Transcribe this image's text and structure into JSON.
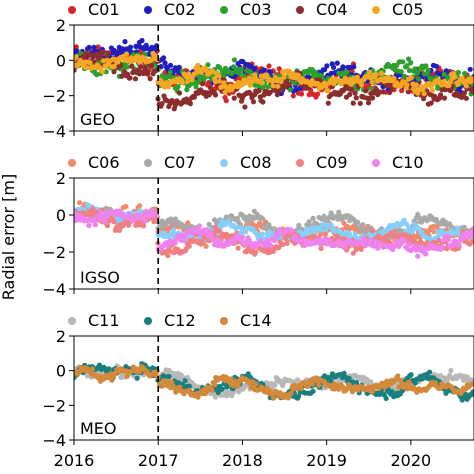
{
  "chart_data": {
    "type": "scatter",
    "ylabel": "Radial error [m]",
    "xticks": [
      "2016",
      "2017",
      "2018",
      "2019",
      "2020"
    ],
    "xlim": [
      2016.0,
      2020.75
    ],
    "epoch_line": 2017.0,
    "panels": [
      {
        "label": "GEO",
        "ylim": [
          -4,
          2
        ],
        "yticks": [
          "2",
          "0",
          "−2",
          "−4"
        ],
        "series": [
          {
            "name": "C01",
            "color": "#d62728",
            "pre_mean": 0.2,
            "post_mean": -1.1,
            "spread": 0.7
          },
          {
            "name": "C02",
            "color": "#1f1fbf",
            "pre_mean": 0.1,
            "post_mean": -1.0,
            "spread": 0.6
          },
          {
            "name": "C03",
            "color": "#2ca02c",
            "pre_mean": 0.0,
            "post_mean": -1.0,
            "spread": 0.7
          },
          {
            "name": "C04",
            "color": "#8c2d2d",
            "pre_mean": -0.2,
            "post_mean": -1.8,
            "spread": 0.6
          },
          {
            "name": "C05",
            "color": "#f5a623",
            "pre_mean": 0.0,
            "post_mean": -1.2,
            "spread": 0.4
          }
        ]
      },
      {
        "label": "IGSO",
        "ylim": [
          -4,
          2
        ],
        "yticks": [
          "2",
          "0",
          "−2",
          "−4"
        ],
        "series": [
          {
            "name": "C06",
            "color": "#f08a6a",
            "pre_mean": 0.1,
            "post_mean": -1.0,
            "spread": 0.4
          },
          {
            "name": "C07",
            "color": "#a9a9a9",
            "pre_mean": 0.0,
            "post_mean": -0.6,
            "spread": 0.3
          },
          {
            "name": "C08",
            "color": "#87cefa",
            "pre_mean": 0.1,
            "post_mean": -0.9,
            "spread": 0.3
          },
          {
            "name": "C09",
            "color": "#f08080",
            "pre_mean": 0.0,
            "post_mean": -1.5,
            "spread": 0.4
          },
          {
            "name": "C10",
            "color": "#ee82ee",
            "pre_mean": 0.0,
            "post_mean": -1.4,
            "spread": 0.3
          }
        ]
      },
      {
        "label": "MEO",
        "ylim": [
          -4,
          2
        ],
        "yticks": [
          "2",
          "0",
          "−2",
          "−4"
        ],
        "series": [
          {
            "name": "C11",
            "color": "#b8b8b8",
            "pre_mean": 0.0,
            "post_mean": -0.8,
            "spread": 0.3
          },
          {
            "name": "C12",
            "color": "#1a7f7f",
            "pre_mean": -0.1,
            "post_mean": -0.9,
            "spread": 0.35
          },
          {
            "name": "C14",
            "color": "#d4893a",
            "pre_mean": -0.1,
            "post_mean": -0.8,
            "spread": 0.3
          }
        ]
      }
    ]
  }
}
